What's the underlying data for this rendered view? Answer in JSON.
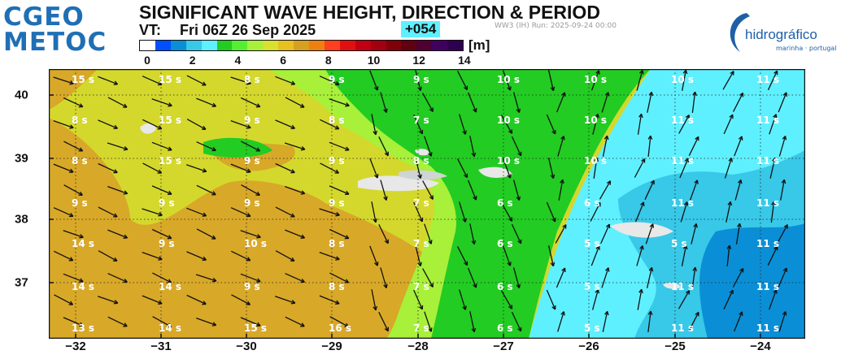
{
  "header": {
    "logo_line1": "CGEO",
    "logo_line2": "METOC",
    "title": "SIGNIFICANT WAVE HEIGHT, DIRECTION & PERIOD",
    "vt_label": "VT:",
    "valid_time": "Fri 06Z 26 Sep 2025",
    "lead_time": "+054",
    "run_info": "WW3 (IH) Run: 2025-09-24 00:00",
    "partner_logo": "hidrográfico",
    "partner_sub": "marinha · portugal"
  },
  "colorbar": {
    "unit": "[m]",
    "labels": [
      "0",
      "2",
      "4",
      "6",
      "8",
      "10",
      "12",
      "14"
    ],
    "colors": [
      "#ffffff",
      "#0050ff",
      "#0a8fd6",
      "#38c8e8",
      "#5ff0ff",
      "#22cc22",
      "#55ee33",
      "#a8f03a",
      "#d8e030",
      "#e8c020",
      "#d8a020",
      "#ee8010",
      "#ff4020",
      "#e01010",
      "#c00010",
      "#a00010",
      "#800008",
      "#600010",
      "#500030",
      "#400060",
      "#300050"
    ]
  },
  "axes": {
    "x_ticks": [
      "−32",
      "−31",
      "−30",
      "−29",
      "−28",
      "−27",
      "−26",
      "−25",
      "−24"
    ],
    "y_ticks": [
      "40",
      "39",
      "38",
      "37"
    ]
  },
  "period_labels": {
    "rows": [
      [
        "15 s",
        "15 s",
        "8 s",
        "9 s",
        "9 s",
        "10 s",
        "10 s",
        "10 s",
        "11 s"
      ],
      [
        "8 s",
        "15 s",
        "9 s",
        "8 s",
        "7 s",
        "10 s",
        "10 s",
        "11 s",
        "11 s"
      ],
      [
        "8 s",
        "15 s",
        "9 s",
        "9 s",
        "8 s",
        "10 s",
        "10 s",
        "11 s",
        "11 s"
      ],
      [
        "9 s",
        "9 s",
        "9 s",
        "9 s",
        "7 s",
        "6 s",
        "6 s",
        "11 s",
        "11 s"
      ],
      [
        "14 s",
        "9 s",
        "10 s",
        "8 s",
        "7 s",
        "6 s",
        "5 s",
        "5 s",
        "11 s"
      ],
      [
        "14 s",
        "14 s",
        "9 s",
        "8 s",
        "7 s",
        "6 s",
        "5 s",
        "11 s",
        "11 s"
      ],
      [
        "13 s",
        "14 s",
        "15 s",
        "16 s",
        "7 s",
        "6 s",
        "5 s",
        "11 s",
        "11 s"
      ]
    ]
  }
}
